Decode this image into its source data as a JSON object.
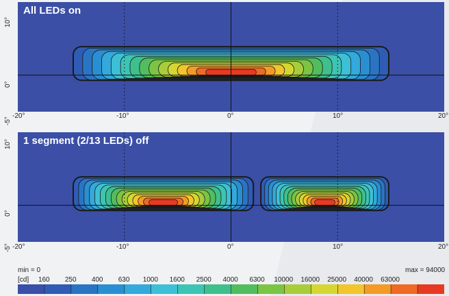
{
  "chart_data": [
    {
      "type": "heatmap",
      "title": "All LEDs on",
      "xticks": [
        "-20°",
        "-10°",
        "0°",
        "10°",
        "20°"
      ],
      "yticks": [
        "10°",
        "0°",
        "-5°"
      ],
      "xlim": [
        -20,
        20
      ],
      "ylim": [
        -5,
        10
      ],
      "segments": [
        {
          "x_start": -14.8,
          "x_end": 14.8,
          "y_bottom": -0.7,
          "y_top": 3.9
        }
      ]
    },
    {
      "type": "heatmap",
      "title": "1 segment (2/13 LEDs) off",
      "xticks": [
        "-20°",
        "-10°",
        "0°",
        "10°",
        "20°"
      ],
      "yticks": [
        "10°",
        "0°",
        "-5°"
      ],
      "xlim": [
        -20,
        20
      ],
      "ylim": [
        -5,
        10
      ],
      "segments": [
        {
          "x_start": -14.8,
          "x_end": 2.1,
          "y_bottom": -0.7,
          "y_top": 3.9
        },
        {
          "x_start": 2.8,
          "x_end": 14.8,
          "y_bottom": -0.7,
          "y_top": 3.9
        }
      ]
    }
  ],
  "legend": {
    "min_label": "min = 0",
    "max_label": "max = 94000",
    "unit": "[cd]",
    "levels": [
      "160",
      "250",
      "400",
      "630",
      "1000",
      "1600",
      "2500",
      "4000",
      "6300",
      "10000",
      "16000",
      "25000",
      "40000",
      "63000"
    ],
    "colors": [
      "#3a4fa8",
      "#2f5cb5",
      "#2a74c4",
      "#2a8fd2",
      "#33a9dc",
      "#3dc0d6",
      "#3dc4b4",
      "#3fbf8c",
      "#52bd5e",
      "#7cc444",
      "#a9cd3a",
      "#d6d633",
      "#f2c52c",
      "#f49a27",
      "#ef6a24",
      "#e63b22"
    ]
  }
}
